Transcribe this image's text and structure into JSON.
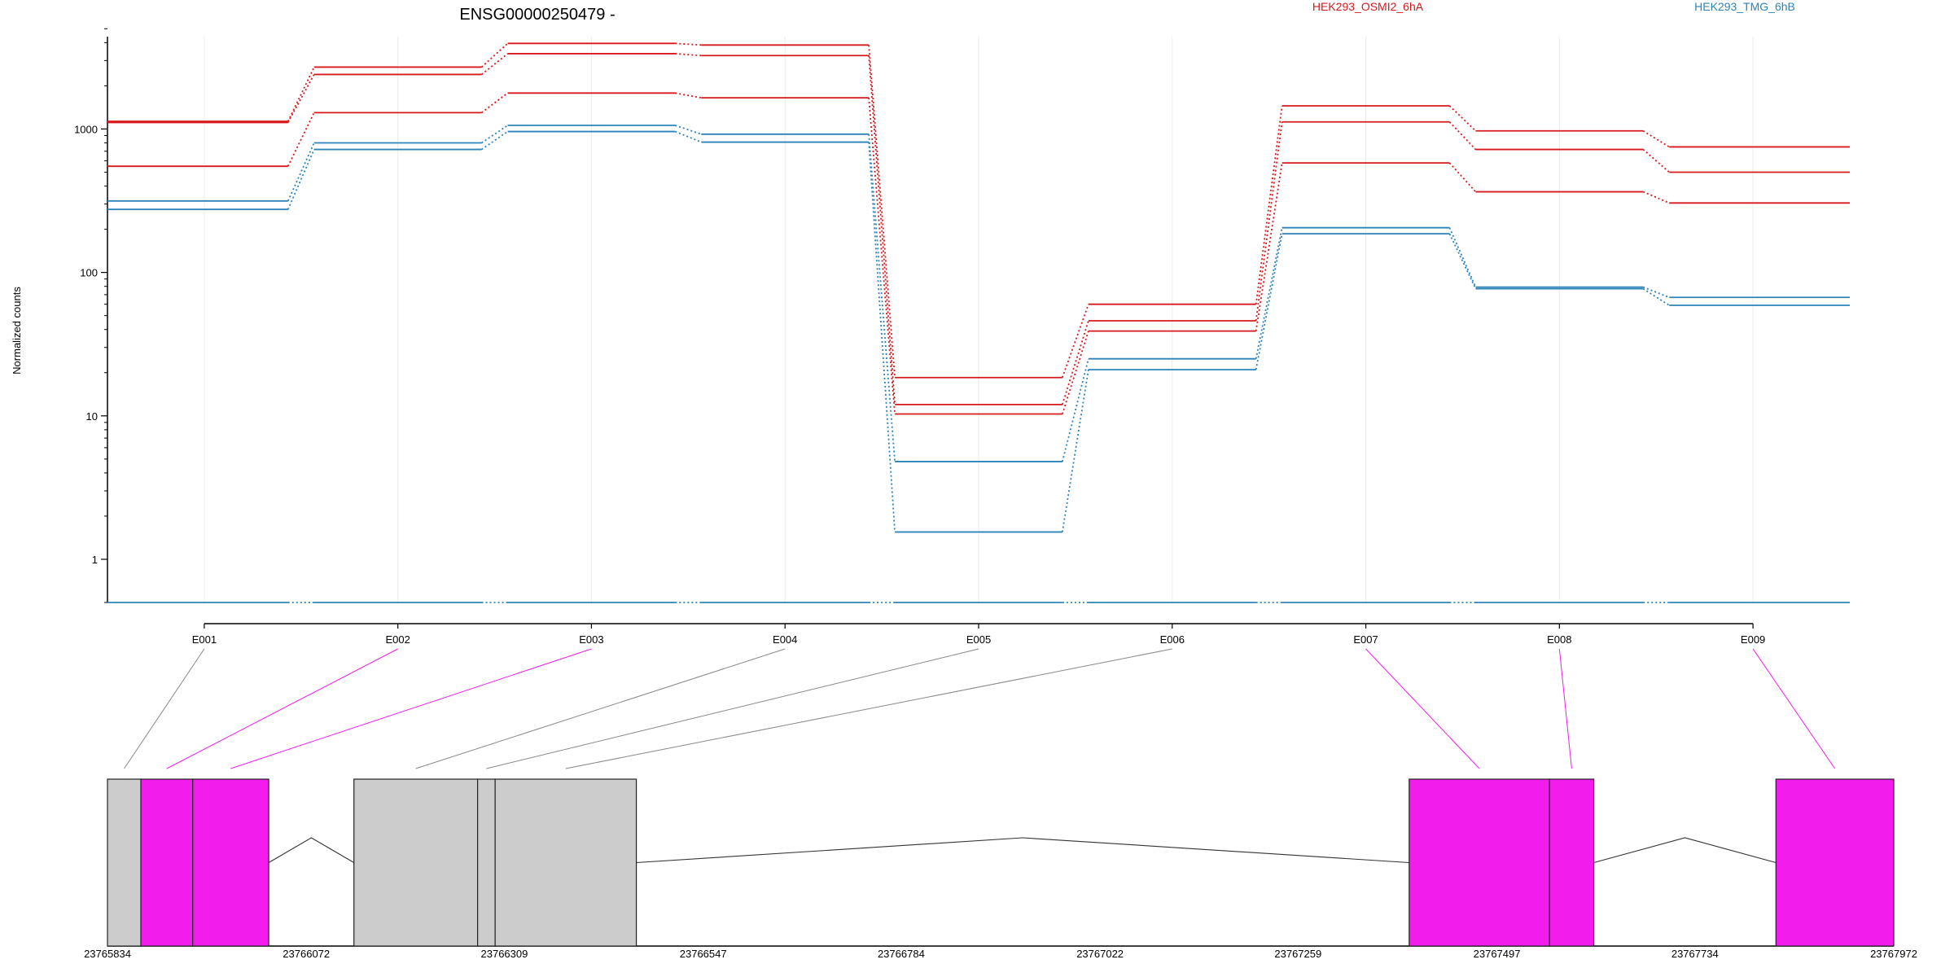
{
  "chart_data": {
    "type": "line",
    "title": "ENSG00000250479 -",
    "ylabel": "Normalized counts",
    "yscale": "log",
    "yticks": [
      1,
      10,
      100,
      1000
    ],
    "ylim": [
      0.5,
      5500
    ],
    "grid": true,
    "legend_position": "top",
    "exons": [
      "E001",
      "E002",
      "E003",
      "E004",
      "E005",
      "E006",
      "E007",
      "E008",
      "E009"
    ],
    "colors": {
      "HEK293_OSMI2_6hA": "#d7191c",
      "HEK293_TMG_6hB": "#2b83ba",
      "differential_exon": "#f21ced",
      "other_exon": "#cccccc"
    },
    "legend": [
      {
        "name": "HEK293_OSMI2_6hA",
        "color": "#d7191c"
      },
      {
        "name": "HEK293_TMG_6hB",
        "color": "#2b83ba"
      }
    ],
    "series": [
      {
        "group": "HEK293_OSMI2_6hA",
        "color": "#d7191c",
        "values": [
          1130,
          2700,
          3950,
          3850,
          18.5,
          60,
          1450,
          970,
          750
        ]
      },
      {
        "group": "HEK293_OSMI2_6hA",
        "color": "#d7191c",
        "values": [
          1110,
          2400,
          3350,
          3250,
          12,
          46,
          1120,
          720,
          500
        ]
      },
      {
        "group": "HEK293_OSMI2_6hA",
        "color": "#d7191c",
        "values": [
          550,
          1300,
          1780,
          1650,
          10.3,
          39,
          580,
          365,
          305
        ]
      },
      {
        "group": "HEK293_TMG_6hB",
        "color": "#2b83ba",
        "values": [
          315,
          800,
          1060,
          920,
          4.8,
          25,
          205,
          79,
          67
        ]
      },
      {
        "group": "HEK293_TMG_6hB",
        "color": "#2b83ba",
        "values": [
          275,
          720,
          960,
          810,
          1.55,
          21,
          186,
          77,
          59
        ]
      },
      {
        "group": "HEK293_TMG_6hB",
        "color": "#2b83ba",
        "values": [
          0.5,
          0.5,
          0.5,
          0.5,
          0.5,
          0.5,
          0.5,
          0.5,
          0.5
        ]
      }
    ],
    "gene_model": {
      "coordinates": [
        "23765834",
        "23766072",
        "23766309",
        "23766547",
        "23766784",
        "23767022",
        "23767259",
        "23767497",
        "23767734",
        "23767972"
      ],
      "exon_bins": [
        {
          "exon": "E001",
          "start": 23765834,
          "end": 23765874,
          "differential": false
        },
        {
          "exon": "E002",
          "start": 23765874,
          "end": 23765936,
          "differential": true
        },
        {
          "exon": "E003",
          "start": 23765936,
          "end": 23766027,
          "differential": true
        },
        {
          "exon": "E004",
          "start": 23766129,
          "end": 23766277,
          "differential": false
        },
        {
          "exon": "E005",
          "start": 23766277,
          "end": 23766298,
          "differential": false
        },
        {
          "exon": "E006",
          "start": 23766298,
          "end": 23766467,
          "differential": false
        },
        {
          "exon": "E007",
          "start": 23767392,
          "end": 23767560,
          "differential": true
        },
        {
          "exon": "E008",
          "start": 23767560,
          "end": 23767613,
          "differential": true
        },
        {
          "exon": "E009",
          "start": 23767831,
          "end": 23767972,
          "differential": true
        }
      ]
    }
  }
}
